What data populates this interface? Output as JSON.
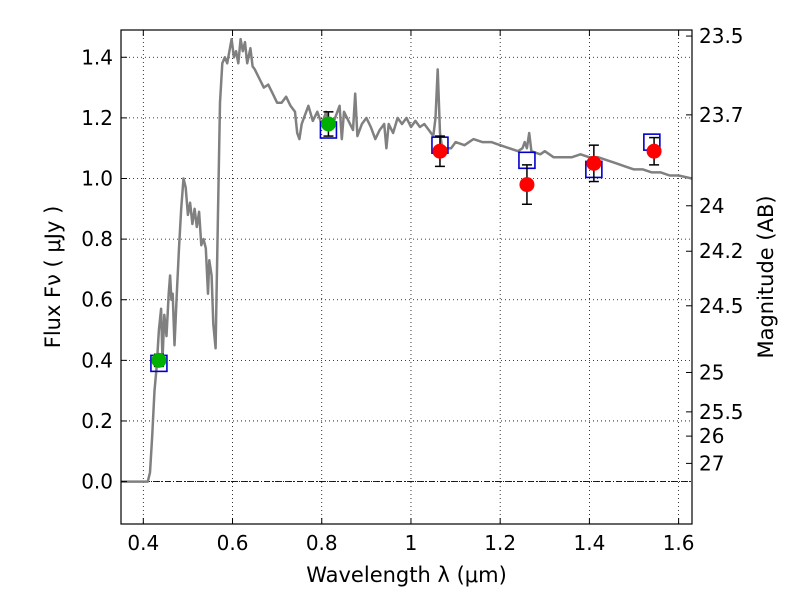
{
  "chart_data": {
    "type": "scatter",
    "xlabel": "Wavelength  λ (μm)",
    "ylabel": "Flux  Fν  ( μJy )",
    "ylabel_right": "Magnitude (AB)",
    "xlim": [
      0.35,
      1.63
    ],
    "ylim": [
      -0.14,
      1.49
    ],
    "grid": true,
    "x_ticks": [
      0.4,
      0.6,
      0.8,
      1.0,
      1.2,
      1.4,
      1.6
    ],
    "x_tick_labels": [
      "0.4",
      "0.6",
      "0.8",
      "1",
      "1.2",
      "1.4",
      "1.6"
    ],
    "y_ticks": [
      0.0,
      0.2,
      0.4,
      0.6,
      0.8,
      1.0,
      1.2,
      1.4
    ],
    "y_tick_labels": [
      "0.0",
      "0.2",
      "0.4",
      "0.6",
      "0.8",
      "1.0",
      "1.2",
      "1.4"
    ],
    "right_ticks": [
      {
        "flux": 1.47,
        "label": "23.5"
      },
      {
        "flux": 1.21,
        "label": "23.7"
      },
      {
        "flux": 0.91,
        "label": "24"
      },
      {
        "flux": 0.76,
        "label": "24.2"
      },
      {
        "flux": 0.58,
        "label": "24.5"
      },
      {
        "flux": 0.36,
        "label": "25"
      },
      {
        "flux": 0.23,
        "label": "25.5"
      },
      {
        "flux": 0.15,
        "label": "26"
      },
      {
        "flux": 0.06,
        "label": "27"
      }
    ],
    "series": [
      {
        "kind": "line",
        "color": "#808080",
        "points": [
          [
            0.35,
            0.0
          ],
          [
            0.39,
            0.0
          ],
          [
            0.41,
            0.0
          ],
          [
            0.415,
            0.03
          ],
          [
            0.42,
            0.15
          ],
          [
            0.425,
            0.3
          ],
          [
            0.43,
            0.38
          ],
          [
            0.435,
            0.5
          ],
          [
            0.44,
            0.57
          ],
          [
            0.443,
            0.4
          ],
          [
            0.447,
            0.55
          ],
          [
            0.452,
            0.48
          ],
          [
            0.457,
            0.62
          ],
          [
            0.46,
            0.68
          ],
          [
            0.463,
            0.6
          ],
          [
            0.466,
            0.62
          ],
          [
            0.47,
            0.45
          ],
          [
            0.475,
            0.62
          ],
          [
            0.48,
            0.77
          ],
          [
            0.485,
            0.9
          ],
          [
            0.49,
            1.0
          ],
          [
            0.495,
            0.97
          ],
          [
            0.5,
            0.88
          ],
          [
            0.505,
            0.92
          ],
          [
            0.51,
            0.85
          ],
          [
            0.515,
            0.9
          ],
          [
            0.52,
            0.84
          ],
          [
            0.525,
            0.89
          ],
          [
            0.53,
            0.78
          ],
          [
            0.535,
            0.8
          ],
          [
            0.54,
            0.77
          ],
          [
            0.545,
            0.62
          ],
          [
            0.548,
            0.73
          ],
          [
            0.553,
            0.68
          ],
          [
            0.557,
            0.52
          ],
          [
            0.562,
            0.44
          ],
          [
            0.567,
            0.85
          ],
          [
            0.572,
            1.25
          ],
          [
            0.577,
            1.38
          ],
          [
            0.583,
            1.4
          ],
          [
            0.588,
            1.38
          ],
          [
            0.593,
            1.42
          ],
          [
            0.598,
            1.46
          ],
          [
            0.603,
            1.4
          ],
          [
            0.608,
            1.42
          ],
          [
            0.613,
            1.38
          ],
          [
            0.618,
            1.46
          ],
          [
            0.623,
            1.42
          ],
          [
            0.628,
            1.45
          ],
          [
            0.633,
            1.38
          ],
          [
            0.64,
            1.43
          ],
          [
            0.645,
            1.37
          ],
          [
            0.65,
            1.36
          ],
          [
            0.66,
            1.33
          ],
          [
            0.67,
            1.3
          ],
          [
            0.68,
            1.31
          ],
          [
            0.69,
            1.28
          ],
          [
            0.7,
            1.25
          ],
          [
            0.71,
            1.25
          ],
          [
            0.72,
            1.27
          ],
          [
            0.73,
            1.24
          ],
          [
            0.74,
            1.22
          ],
          [
            0.745,
            1.15
          ],
          [
            0.75,
            1.13
          ],
          [
            0.755,
            1.18
          ],
          [
            0.76,
            1.2
          ],
          [
            0.77,
            1.24
          ],
          [
            0.78,
            1.19
          ],
          [
            0.79,
            1.22
          ],
          [
            0.8,
            1.18
          ],
          [
            0.81,
            1.22
          ],
          [
            0.82,
            1.16
          ],
          [
            0.83,
            1.2
          ],
          [
            0.84,
            1.24
          ],
          [
            0.845,
            1.13
          ],
          [
            0.85,
            1.22
          ],
          [
            0.86,
            1.19
          ],
          [
            0.87,
            1.16
          ],
          [
            0.875,
            1.28
          ],
          [
            0.88,
            1.14
          ],
          [
            0.89,
            1.18
          ],
          [
            0.9,
            1.2
          ],
          [
            0.91,
            1.17
          ],
          [
            0.92,
            1.13
          ],
          [
            0.93,
            1.16
          ],
          [
            0.94,
            1.18
          ],
          [
            0.945,
            1.1
          ],
          [
            0.95,
            1.18
          ],
          [
            0.96,
            1.15
          ],
          [
            0.97,
            1.2
          ],
          [
            0.98,
            1.18
          ],
          [
            0.99,
            1.2
          ],
          [
            1.0,
            1.17
          ],
          [
            1.01,
            1.19
          ],
          [
            1.02,
            1.17
          ],
          [
            1.03,
            1.18
          ],
          [
            1.04,
            1.16
          ],
          [
            1.05,
            1.14
          ],
          [
            1.055,
            1.2
          ],
          [
            1.06,
            1.36
          ],
          [
            1.065,
            1.15
          ],
          [
            1.07,
            1.1
          ],
          [
            1.09,
            1.1
          ],
          [
            1.1,
            1.12
          ],
          [
            1.12,
            1.11
          ],
          [
            1.14,
            1.13
          ],
          [
            1.16,
            1.12
          ],
          [
            1.18,
            1.12
          ],
          [
            1.2,
            1.11
          ],
          [
            1.22,
            1.1
          ],
          [
            1.24,
            1.09
          ],
          [
            1.25,
            1.1
          ],
          [
            1.255,
            1.12
          ],
          [
            1.26,
            1.1
          ],
          [
            1.265,
            1.15
          ],
          [
            1.27,
            1.09
          ],
          [
            1.29,
            1.08
          ],
          [
            1.3,
            1.09
          ],
          [
            1.32,
            1.07
          ],
          [
            1.34,
            1.07
          ],
          [
            1.36,
            1.07
          ],
          [
            1.38,
            1.08
          ],
          [
            1.4,
            1.07
          ],
          [
            1.42,
            1.07
          ],
          [
            1.44,
            1.06
          ],
          [
            1.46,
            1.05
          ],
          [
            1.48,
            1.04
          ],
          [
            1.5,
            1.03
          ],
          [
            1.52,
            1.03
          ],
          [
            1.54,
            1.02
          ],
          [
            1.56,
            1.02
          ],
          [
            1.58,
            1.01
          ],
          [
            1.6,
            1.01
          ],
          [
            1.63,
            1.0
          ]
        ]
      },
      {
        "kind": "markers",
        "shape": "square",
        "color": "#0000cc",
        "points": [
          [
            0.435,
            0.39
          ],
          [
            0.815,
            1.16
          ],
          [
            1.065,
            1.11
          ],
          [
            1.26,
            1.06
          ],
          [
            1.41,
            1.03
          ],
          [
            1.54,
            1.12
          ]
        ]
      },
      {
        "kind": "markers",
        "shape": "circle",
        "color": "#00b000",
        "points": [
          {
            "x": 0.435,
            "y": 0.4,
            "err": 0.02
          },
          {
            "x": 0.815,
            "y": 1.18,
            "err": 0.04
          }
        ]
      },
      {
        "kind": "markers",
        "shape": "circle",
        "color": "#ff0000",
        "points": [
          {
            "x": 1.065,
            "y": 1.09,
            "err": 0.05
          },
          {
            "x": 1.26,
            "y": 0.98,
            "err": 0.065
          },
          {
            "x": 1.41,
            "y": 1.05,
            "err": 0.06
          },
          {
            "x": 1.545,
            "y": 1.09,
            "err": 0.045
          }
        ]
      }
    ]
  }
}
